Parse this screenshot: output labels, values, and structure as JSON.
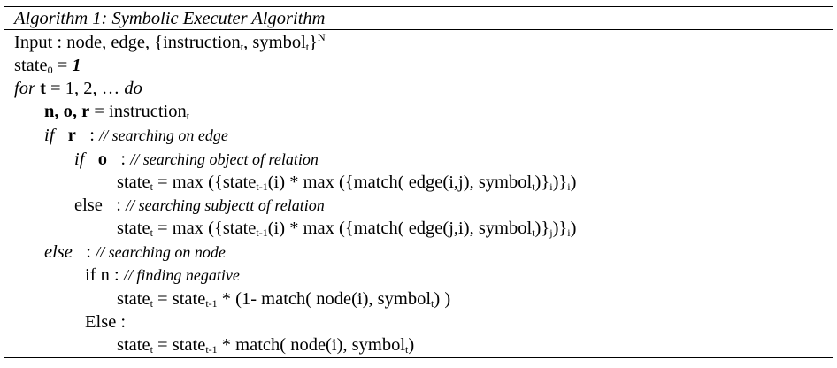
{
  "title": "Algorithm 1: Symbolic Executer Algorithm",
  "input": {
    "label": "Input : node, edge, {instruction",
    "sub_t1": "t",
    "mid": ", symbol",
    "sub_t2": "t",
    "close": "}",
    "sup_n": "N"
  },
  "init": {
    "state": "state",
    "sub0": "0",
    "eq": " = ",
    "one": "1"
  },
  "loop": {
    "for_kw": "for",
    "t_var": "t",
    "range": " = 1, 2, … ",
    "do_kw": "do"
  },
  "assign": {
    "vars": "n, o, r",
    "eq": " = instruction",
    "sub_t": "t"
  },
  "if_r": {
    "kw": "if",
    "var": "r",
    "sep": " : ",
    "comment": "// searching on edge"
  },
  "if_o": {
    "kw": "if",
    "var": "o",
    "sep": " : ",
    "comment": "// searching object of relation"
  },
  "eq_object": {
    "a": "state",
    "a_sub": "t",
    "b": " = max ({state",
    "b_sub": "t-1",
    "c": "(i) * max ({match( edge(i,j), symbol",
    "c_sub": "t",
    "d": ")}",
    "d_sub": "i",
    "e": ")}",
    "e_sub": "i",
    "f": ")"
  },
  "else_o": {
    "kw": "else",
    "sep": " : ",
    "comment": "// searching subjectt of relation"
  },
  "eq_subject": {
    "a": "state",
    "a_sub": "t",
    "b": " = max ({state",
    "b_sub": "t-1",
    "c": "(i) * max ({match( edge(j,i), symbol",
    "c_sub": "t",
    "d": ")}",
    "d_sub": "j",
    "e": ")}",
    "e_sub": "i",
    "f": ")"
  },
  "else_r": {
    "kw": "else",
    "sep": " : ",
    "comment": "// searching on node"
  },
  "if_n": {
    "kw": "if n : ",
    "comment": "// finding negative"
  },
  "eq_neg": {
    "a": "state",
    "a_sub": "t",
    "b": " = state",
    "b_sub": "t-1",
    "c": " * (1- match( node(i), symbol",
    "c_sub": "t",
    "d": ") )"
  },
  "else_n": {
    "kw": "Else :"
  },
  "eq_pos": {
    "a": "state",
    "a_sub": "t",
    "b": " = state",
    "b_sub": "t-1",
    "c": " * match( node(i), symbol",
    "c_sub": "t",
    "d": ")"
  }
}
